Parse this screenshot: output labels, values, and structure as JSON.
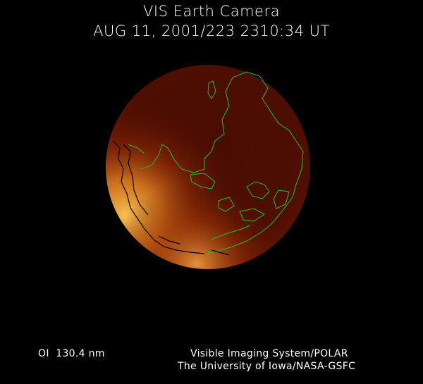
{
  "header": {
    "title": "VIS Earth Camera",
    "timestamp": "AUG 11, 2001/223 2310:34 UT"
  },
  "footer": {
    "wavelength": "OI  130.4 nm",
    "instrument": "Visible Imaging System/POLAR",
    "institution": "The University of Iowa/NASA-GSFC"
  },
  "colors": {
    "background": "#000000",
    "disk": "#4a0c02",
    "aurora": "#f0b040",
    "coastline": "#22c022"
  }
}
